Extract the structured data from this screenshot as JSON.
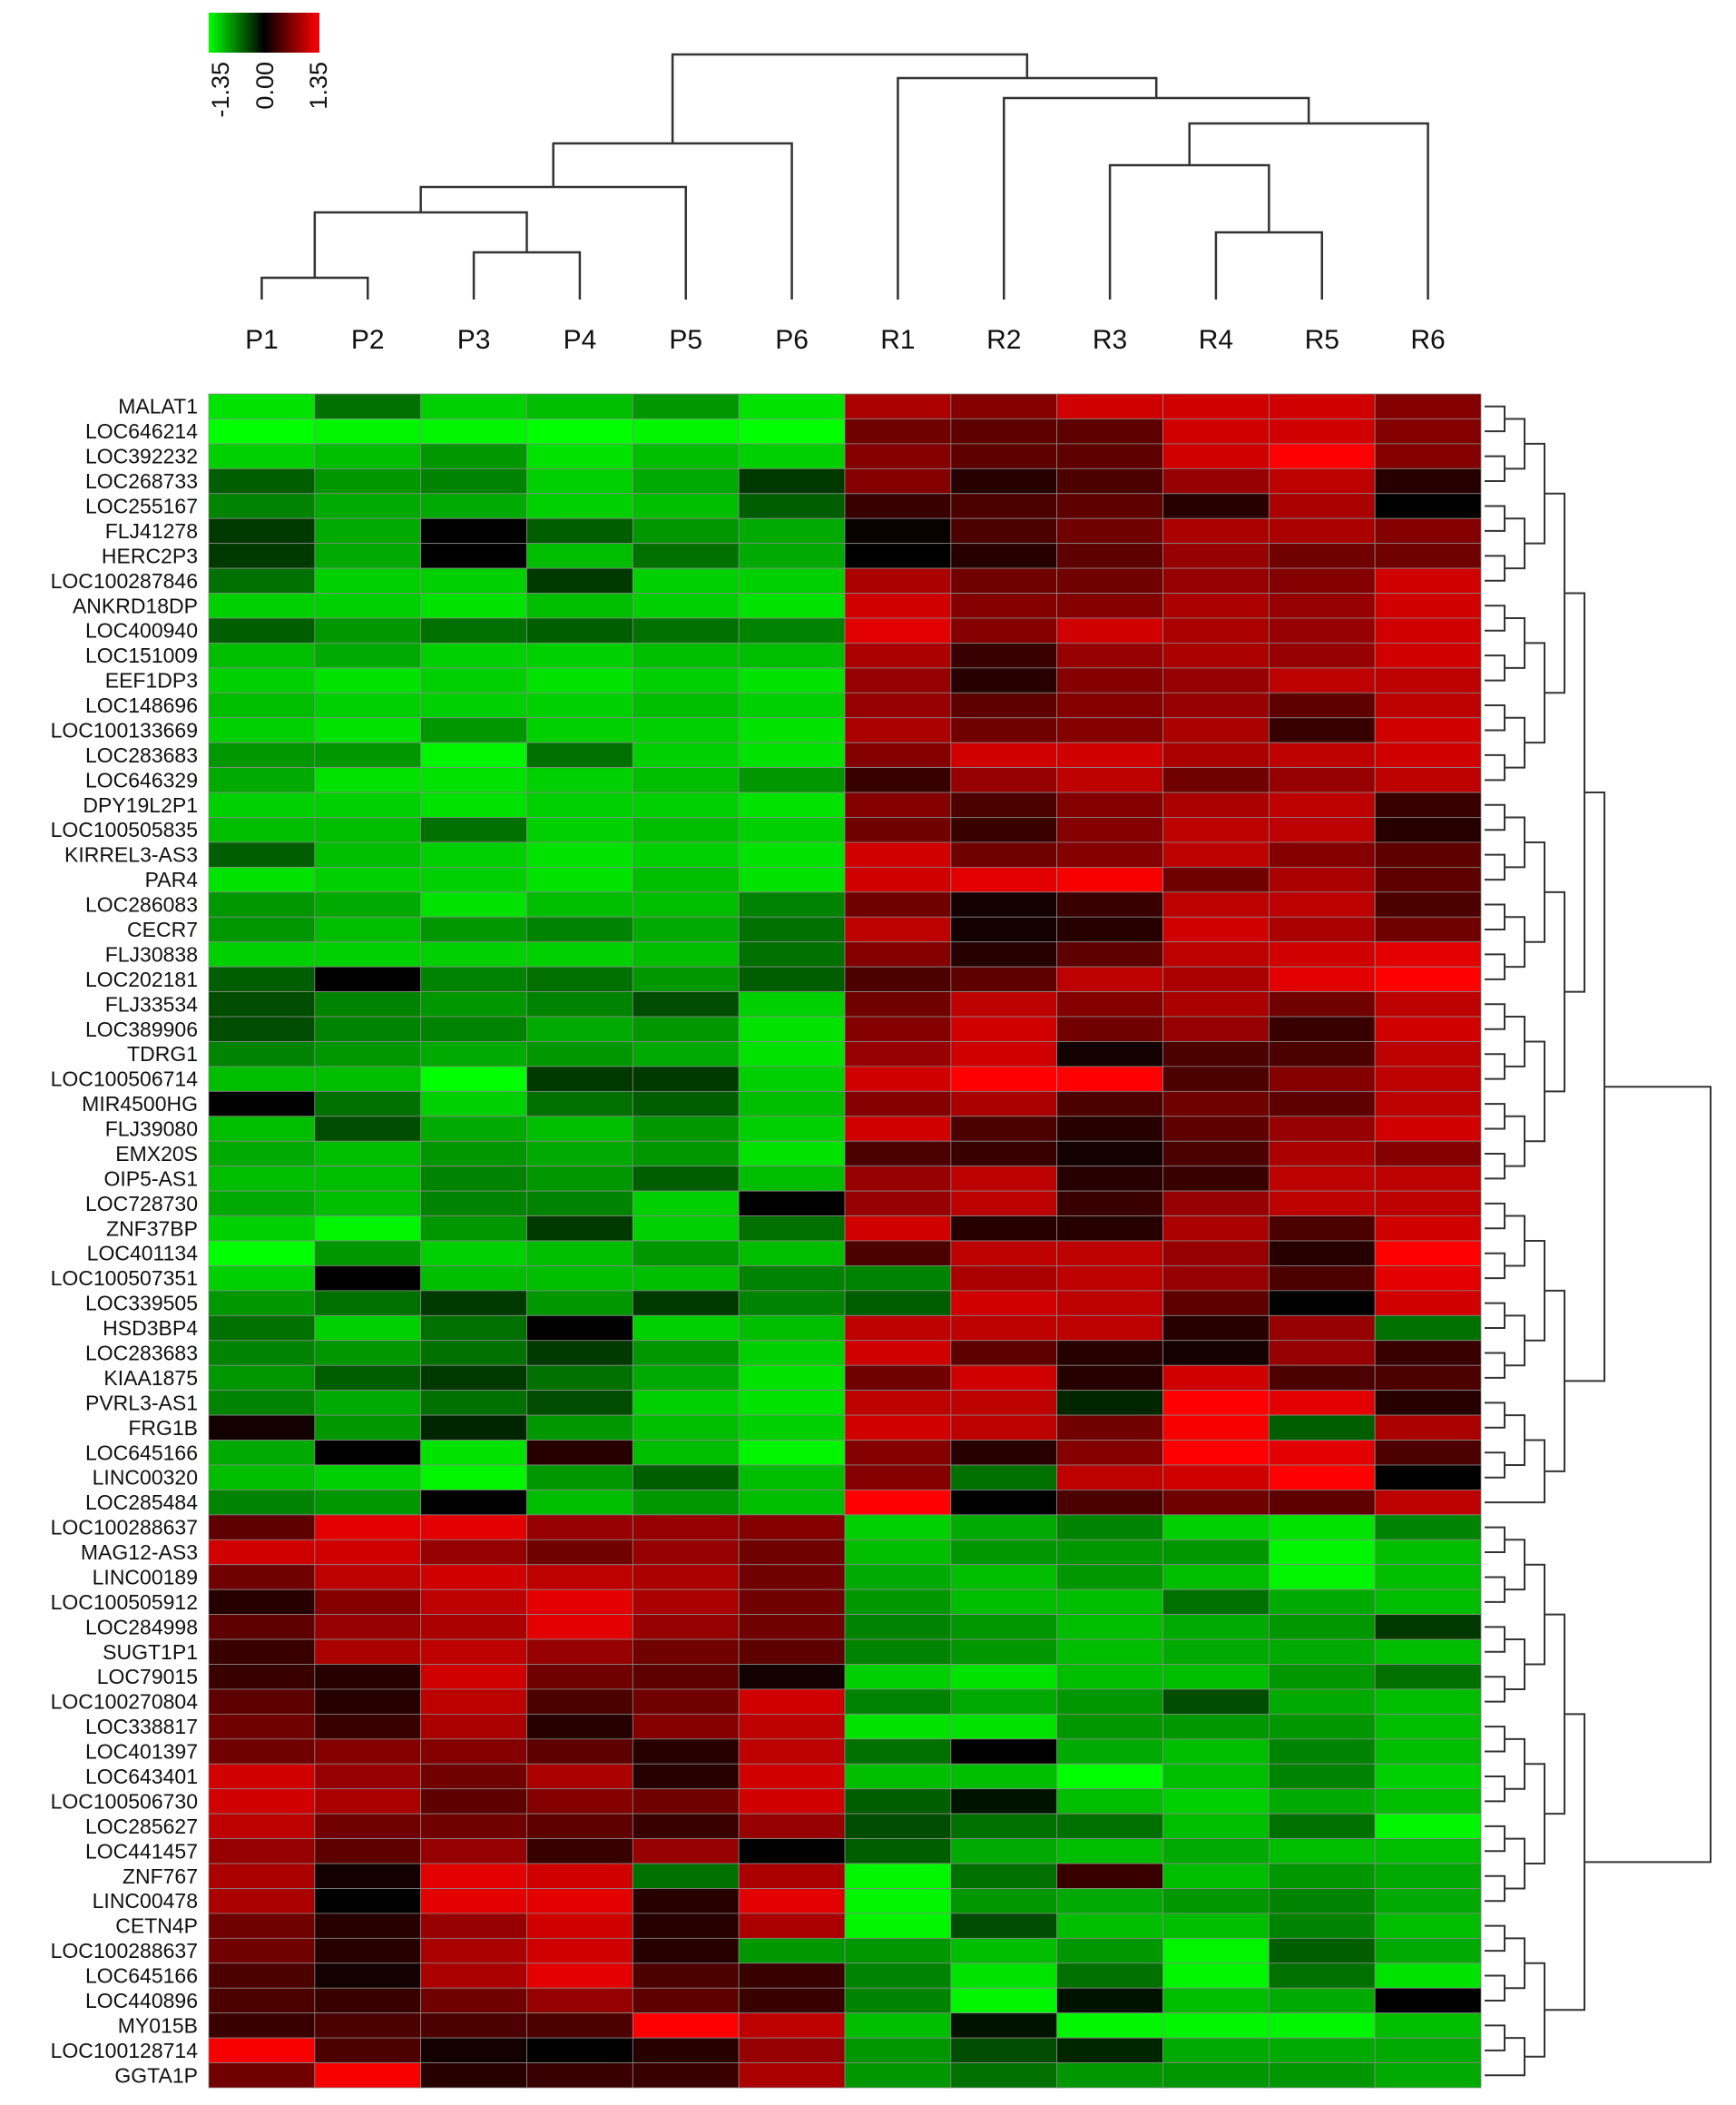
{
  "chart_data": {
    "type": "heatmap",
    "title": "",
    "xlabel": "",
    "ylabel": "",
    "color_scale": {
      "min": -1.35,
      "mid": 0.0,
      "max": 1.35,
      "tick_labels": [
        "-1.35",
        "0.00",
        "1.35"
      ],
      "low_color": "#00ff00",
      "mid_color": "#000000",
      "high_color": "#ff0000"
    },
    "columns": [
      "P1",
      "P2",
      "P3",
      "P4",
      "P5",
      "P6",
      "R1",
      "R2",
      "R3",
      "R4",
      "R5",
      "R6"
    ],
    "rows": [
      "MALAT1",
      "LOC646214",
      "LOC392232",
      "LOC268733",
      "LOC255167",
      "FLJ41278",
      "HERC2P3",
      "LOC100287846",
      "ANKRD18DP",
      "LOC400940",
      "LOC151009",
      "EEF1DP3",
      "LOC148696",
      "LOC100133669",
      "LOC283683",
      "LOC646329",
      "DPY19L2P1",
      "LOC100505835",
      "KIRREL3-AS3",
      "PAR4",
      "LOC286083",
      "CECR7",
      "FLJ30838",
      "LOC202181",
      "FLJ33534",
      "LOC389906",
      "TDRG1",
      "LOC100506714",
      "MIR4500HG",
      "FLJ39080",
      "EMX20S",
      "OIP5-AS1",
      "LOC728730",
      "ZNF37BP",
      "LOC401134",
      "LOC100507351",
      "LOC339505",
      "HSD3BP4",
      "LOC283683",
      "KIAA1875",
      "PVRL3-AS1",
      "FRG1B",
      "LOC645166",
      "LINC00320",
      "LOC285484",
      "LOC100288637",
      "MAG12-AS3",
      "LINC00189",
      "LOC100505912",
      "LOC284998",
      "SUGT1P1",
      "LOC79015",
      "LOC100270804",
      "LOC338817",
      "LOC401397",
      "LOC643401",
      "LOC100506730",
      "LOC285627",
      "LOC441457",
      "ZNF767",
      "LINC00478",
      "CETN4P",
      "LOC100288637",
      "LOC645166",
      "LOC440896",
      "MY015B",
      "LOC100128714",
      "GGTA1P"
    ],
    "values": [
      [
        -1.2,
        -0.6,
        -1.1,
        -1.0,
        -0.8,
        -1.2,
        0.9,
        0.7,
        1.1,
        1.1,
        1.1,
        0.7
      ],
      [
        -1.35,
        -1.3,
        -1.3,
        -1.35,
        -1.3,
        -1.35,
        0.6,
        0.5,
        0.5,
        1.1,
        1.1,
        0.7
      ],
      [
        -1.1,
        -1.0,
        -0.8,
        -1.2,
        -1.0,
        -1.1,
        0.7,
        0.5,
        0.5,
        1.1,
        1.35,
        0.7
      ],
      [
        -0.5,
        -0.8,
        -0.7,
        -1.1,
        -0.9,
        -0.3,
        0.7,
        0.2,
        0.4,
        0.8,
        1.0,
        0.2
      ],
      [
        -0.7,
        -0.9,
        -0.9,
        -1.1,
        -1.0,
        -0.5,
        0.3,
        0.4,
        0.5,
        0.2,
        0.9,
        0.0
      ],
      [
        -0.3,
        -0.9,
        0.0,
        -0.5,
        -0.8,
        -0.9,
        0.05,
        0.4,
        0.6,
        0.9,
        0.9,
        0.7
      ],
      [
        -0.3,
        -0.9,
        0.0,
        -1.0,
        -0.6,
        -0.9,
        0.0,
        0.2,
        0.5,
        0.8,
        0.6,
        0.6
      ],
      [
        -0.6,
        -1.1,
        -1.1,
        -0.3,
        -1.1,
        -1.1,
        0.9,
        0.6,
        0.6,
        0.8,
        0.7,
        1.1
      ],
      [
        -1.1,
        -1.1,
        -1.2,
        -1.0,
        -1.1,
        -1.2,
        1.1,
        0.7,
        0.7,
        0.9,
        0.8,
        1.1
      ],
      [
        -0.5,
        -0.8,
        -0.6,
        -0.5,
        -0.6,
        -0.7,
        1.2,
        0.7,
        1.1,
        0.9,
        0.8,
        1.1
      ],
      [
        -1.0,
        -0.9,
        -1.1,
        -1.1,
        -1.0,
        -1.0,
        0.9,
        0.3,
        0.8,
        0.9,
        0.8,
        1.1
      ],
      [
        -1.1,
        -1.2,
        -1.1,
        -1.2,
        -1.1,
        -1.2,
        0.8,
        0.2,
        0.7,
        0.8,
        1.0,
        1.0
      ],
      [
        -1.0,
        -1.1,
        -1.1,
        -1.1,
        -1.0,
        -1.1,
        0.8,
        0.5,
        0.7,
        0.8,
        0.5,
        1.0
      ],
      [
        -1.1,
        -1.2,
        -0.8,
        -1.1,
        -1.1,
        -1.2,
        0.9,
        0.6,
        0.7,
        0.9,
        0.3,
        1.1
      ],
      [
        -0.8,
        -0.8,
        -1.3,
        -0.6,
        -1.1,
        -1.2,
        0.7,
        1.1,
        1.1,
        0.9,
        1.0,
        1.1
      ],
      [
        -0.9,
        -1.2,
        -1.2,
        -1.1,
        -1.0,
        -0.8,
        0.3,
        0.8,
        1.0,
        0.6,
        0.8,
        1.0
      ],
      [
        -1.1,
        -1.1,
        -1.2,
        -1.1,
        -1.1,
        -1.2,
        0.7,
        0.4,
        0.7,
        0.9,
        1.0,
        0.3
      ],
      [
        -1.0,
        -1.0,
        -0.6,
        -1.1,
        -1.0,
        -1.1,
        0.6,
        0.3,
        0.7,
        1.0,
        1.0,
        0.2
      ],
      [
        -0.5,
        -1.0,
        -1.1,
        -1.2,
        -1.1,
        -1.2,
        1.1,
        0.6,
        0.7,
        1.0,
        0.7,
        0.5
      ],
      [
        -1.2,
        -1.1,
        -1.1,
        -1.2,
        -1.0,
        -1.2,
        1.1,
        1.2,
        1.3,
        0.6,
        0.9,
        0.5
      ],
      [
        -0.8,
        -0.9,
        -1.2,
        -1.0,
        -1.0,
        -0.7,
        0.6,
        0.1,
        0.3,
        1.0,
        1.0,
        0.4
      ],
      [
        -0.8,
        -1.0,
        -0.8,
        -0.7,
        -0.9,
        -0.6,
        1.0,
        0.1,
        0.2,
        1.1,
        0.9,
        0.6
      ],
      [
        -1.1,
        -1.1,
        -1.1,
        -1.1,
        -1.0,
        -0.6,
        0.7,
        0.2,
        0.5,
        1.0,
        1.1,
        1.2
      ],
      [
        -0.5,
        0.0,
        -0.7,
        -0.6,
        -0.8,
        -0.5,
        0.4,
        0.5,
        1.0,
        0.9,
        1.2,
        1.35
      ],
      [
        -0.4,
        -0.7,
        -0.8,
        -0.7,
        -0.4,
        -1.1,
        0.6,
        1.0,
        0.7,
        0.9,
        0.6,
        1.0
      ],
      [
        -0.4,
        -0.7,
        -0.7,
        -0.9,
        -0.8,
        -1.2,
        0.7,
        1.1,
        0.6,
        0.8,
        0.3,
        1.1
      ],
      [
        -0.7,
        -0.8,
        -0.9,
        -0.8,
        -0.9,
        -1.2,
        0.8,
        1.1,
        0.1,
        0.4,
        0.4,
        1.0
      ],
      [
        -1.0,
        -1.0,
        -1.35,
        -0.3,
        -0.3,
        -1.1,
        1.1,
        1.35,
        1.35,
        0.4,
        0.7,
        1.0
      ],
      [
        0.0,
        -0.6,
        -1.1,
        -0.6,
        -0.5,
        -1.0,
        0.7,
        0.9,
        0.4,
        0.6,
        0.5,
        1.0
      ],
      [
        -1.0,
        -0.4,
        -0.9,
        -1.0,
        -0.8,
        -1.1,
        1.1,
        0.4,
        0.2,
        0.5,
        0.8,
        1.1
      ],
      [
        -0.9,
        -1.0,
        -0.8,
        -0.9,
        -0.8,
        -1.2,
        0.4,
        0.3,
        0.1,
        0.4,
        0.9,
        0.7
      ],
      [
        -1.0,
        -1.0,
        -0.7,
        -0.8,
        -0.5,
        -1.0,
        0.8,
        1.0,
        0.2,
        0.3,
        1.0,
        1.0
      ],
      [
        -0.9,
        -1.0,
        -0.7,
        -0.7,
        -1.1,
        0.0,
        0.8,
        1.0,
        0.3,
        0.8,
        1.0,
        1.0
      ],
      [
        -1.1,
        -1.3,
        -0.8,
        -0.3,
        -1.1,
        -0.6,
        1.1,
        0.2,
        0.2,
        0.9,
        0.4,
        1.1
      ],
      [
        -1.35,
        -0.8,
        -1.1,
        -1.0,
        -0.8,
        -1.0,
        0.4,
        1.0,
        1.0,
        0.8,
        0.2,
        1.35
      ],
      [
        -1.1,
        0.0,
        -1.0,
        -1.0,
        -1.0,
        -0.7,
        -0.7,
        0.9,
        1.0,
        0.8,
        0.4,
        1.2
      ],
      [
        -0.8,
        -0.6,
        -0.3,
        -0.8,
        -0.3,
        -0.7,
        -0.5,
        1.1,
        1.0,
        0.5,
        0.0,
        1.1
      ],
      [
        -0.6,
        -1.1,
        -0.6,
        0.0,
        -1.1,
        -1.0,
        1.0,
        1.0,
        1.0,
        0.2,
        0.8,
        -0.6
      ],
      [
        -0.7,
        -0.8,
        -0.6,
        -0.3,
        -0.8,
        -1.1,
        1.1,
        0.5,
        0.2,
        0.1,
        0.8,
        0.3
      ],
      [
        -0.8,
        -0.5,
        -0.3,
        -0.6,
        -0.9,
        -1.2,
        0.6,
        1.1,
        0.2,
        1.1,
        0.4,
        0.4
      ],
      [
        -0.7,
        -0.9,
        -0.6,
        -0.4,
        -1.1,
        -1.2,
        1.0,
        1.0,
        -0.2,
        1.35,
        1.2,
        0.2
      ],
      [
        0.1,
        -0.8,
        -0.2,
        -0.8,
        -1.0,
        -1.1,
        1.1,
        1.0,
        0.6,
        1.3,
        -0.5,
        0.9
      ],
      [
        -0.9,
        0.0,
        -1.2,
        0.2,
        -1.0,
        -1.3,
        0.7,
        0.2,
        0.7,
        1.35,
        1.2,
        0.4
      ],
      [
        -1.0,
        -1.1,
        -1.3,
        -0.8,
        -0.5,
        -1.0,
        0.7,
        -0.6,
        1.0,
        1.1,
        1.35,
        0.0
      ],
      [
        -0.7,
        -0.8,
        0.0,
        -1.0,
        -0.8,
        -1.0,
        1.35,
        0.0,
        0.4,
        0.6,
        0.5,
        1.0
      ],
      [
        0.5,
        1.2,
        1.2,
        0.8,
        0.8,
        0.7,
        -1.1,
        -0.9,
        -0.7,
        -1.1,
        -1.2,
        -0.7
      ],
      [
        1.1,
        1.1,
        0.8,
        0.6,
        0.8,
        0.6,
        -1.0,
        -0.8,
        -0.8,
        -0.8,
        -1.3,
        -1.0
      ],
      [
        0.6,
        1.0,
        1.1,
        1.0,
        0.9,
        0.6,
        -0.9,
        -1.0,
        -0.8,
        -1.0,
        -1.3,
        -1.0
      ],
      [
        0.2,
        0.7,
        1.0,
        1.2,
        0.9,
        0.6,
        -0.8,
        -1.0,
        -1.0,
        -0.6,
        -0.9,
        -1.0
      ],
      [
        0.5,
        0.8,
        0.9,
        1.2,
        0.8,
        0.6,
        -0.7,
        -0.8,
        -1.0,
        -0.9,
        -0.8,
        -0.3
      ],
      [
        0.3,
        0.9,
        1.0,
        0.8,
        0.6,
        0.5,
        -0.7,
        -0.8,
        -1.0,
        -0.9,
        -0.9,
        -1.0
      ],
      [
        0.3,
        0.2,
        1.1,
        0.6,
        0.5,
        0.1,
        -1.1,
        -1.2,
        -1.0,
        -1.0,
        -0.8,
        -0.6
      ],
      [
        0.5,
        0.2,
        1.0,
        0.4,
        0.6,
        1.1,
        -0.7,
        -0.9,
        -0.8,
        -0.4,
        -0.9,
        -1.0
      ],
      [
        0.6,
        0.3,
        0.9,
        0.2,
        0.7,
        1.0,
        -1.2,
        -1.2,
        -0.8,
        -0.8,
        -0.8,
        -1.0
      ],
      [
        0.6,
        0.7,
        0.7,
        0.5,
        0.2,
        1.0,
        -0.6,
        0.0,
        -0.9,
        -1.0,
        -0.7,
        -1.0
      ],
      [
        1.1,
        0.8,
        0.6,
        0.9,
        0.2,
        1.1,
        -1.0,
        -1.0,
        -1.35,
        -1.0,
        -0.7,
        -1.1
      ],
      [
        1.1,
        0.9,
        0.5,
        0.7,
        0.6,
        1.1,
        -0.5,
        -0.1,
        -1.0,
        -1.1,
        -0.9,
        -1.0
      ],
      [
        1.0,
        0.6,
        0.6,
        0.5,
        0.3,
        0.8,
        -0.4,
        -0.6,
        -0.6,
        -1.0,
        -0.6,
        -1.3
      ],
      [
        0.8,
        0.5,
        0.8,
        0.3,
        0.8,
        0.0,
        -0.5,
        -0.9,
        -1.0,
        -0.9,
        -1.0,
        -1.0
      ],
      [
        0.9,
        0.1,
        1.2,
        1.1,
        -0.6,
        0.9,
        -1.3,
        -0.6,
        0.3,
        -1.0,
        -0.8,
        -0.9
      ],
      [
        0.9,
        0.0,
        1.2,
        1.2,
        0.2,
        1.2,
        -1.3,
        -0.8,
        -0.9,
        -0.8,
        -0.7,
        -0.9
      ],
      [
        0.6,
        0.2,
        0.8,
        1.1,
        0.2,
        0.9,
        -1.3,
        -0.4,
        -1.0,
        -1.0,
        -0.7,
        -1.0
      ],
      [
        0.6,
        0.2,
        0.9,
        1.1,
        0.2,
        -0.8,
        -0.8,
        -1.0,
        -0.8,
        -1.3,
        -0.5,
        -0.9
      ],
      [
        0.4,
        0.1,
        0.9,
        1.2,
        0.4,
        0.3,
        -0.7,
        -1.2,
        -0.6,
        -1.3,
        -0.6,
        -1.2
      ],
      [
        0.4,
        0.3,
        0.6,
        0.8,
        0.5,
        0.3,
        -0.7,
        -1.3,
        -0.1,
        -1.0,
        -0.9,
        0.0
      ],
      [
        0.3,
        0.4,
        0.4,
        0.4,
        1.35,
        1.0,
        -1.0,
        -0.1,
        -1.3,
        -1.3,
        -1.3,
        -1.0
      ],
      [
        1.3,
        0.4,
        0.1,
        0.0,
        0.2,
        0.8,
        -0.8,
        -0.4,
        -0.2,
        -0.9,
        -0.9,
        -0.9
      ],
      [
        0.6,
        1.3,
        0.2,
        0.3,
        0.3,
        0.9,
        -0.8,
        -0.6,
        -0.8,
        -0.8,
        -0.8,
        -0.9
      ]
    ],
    "column_dendrogram": true,
    "row_dendrogram": true,
    "grid": false,
    "legend_placement": "top-left"
  }
}
